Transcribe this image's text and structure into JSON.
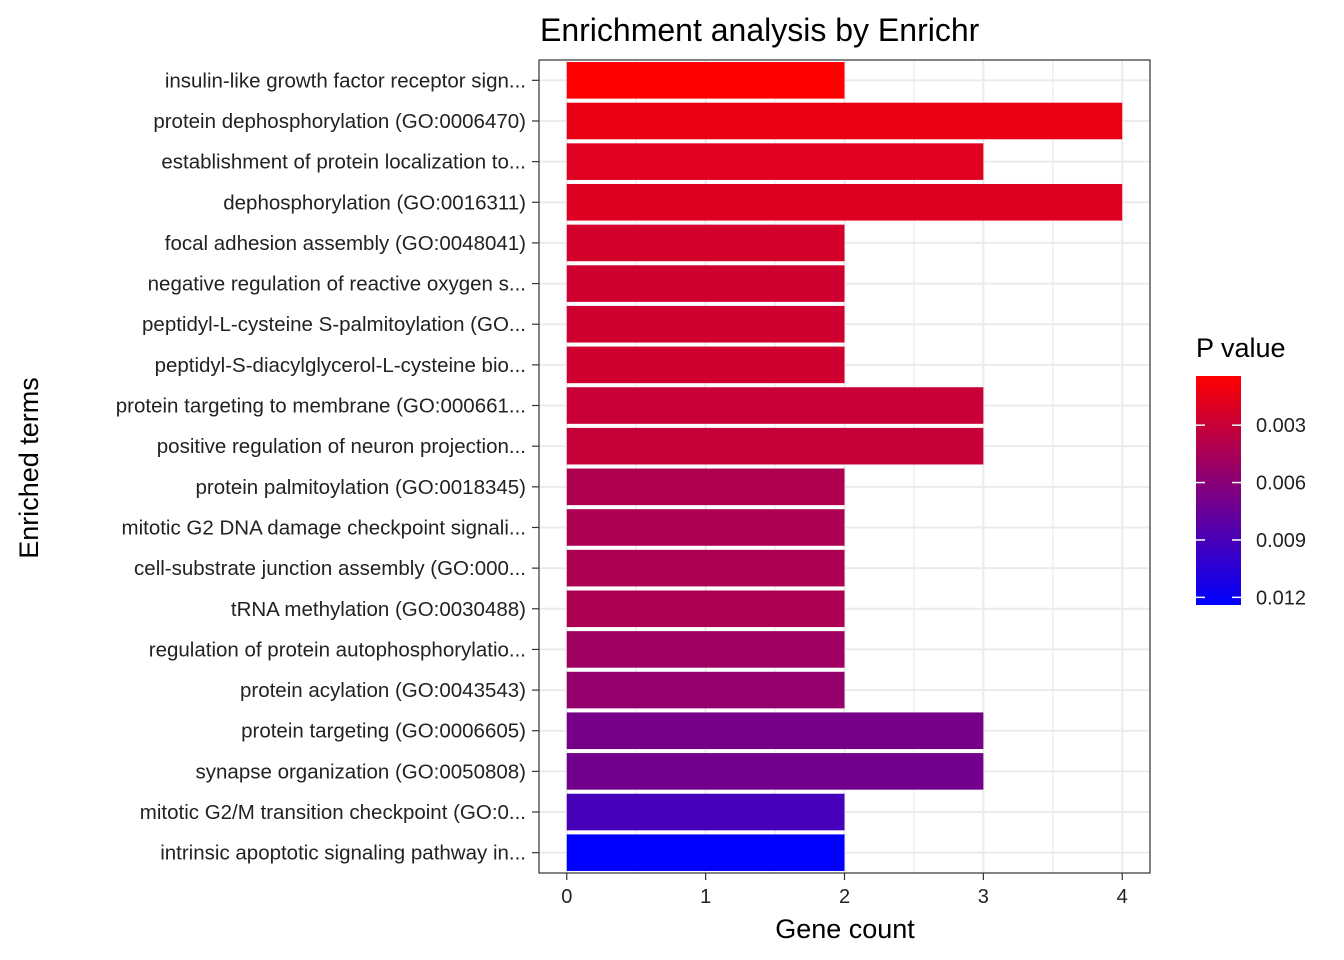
{
  "chart_data": {
    "type": "bar",
    "orientation": "horizontal",
    "title": "Enrichment analysis by Enrichr",
    "xlabel": "Gene count",
    "ylabel": "Enriched terms",
    "xlim": [
      -0.2,
      4.2
    ],
    "xticks": [
      0,
      1,
      2,
      3,
      4
    ],
    "grid": true,
    "color_low": "#FF0000",
    "color_high": "#0000FF",
    "categories": [
      "insulin-like growth factor receptor sign...",
      "protein dephosphorylation (GO:0006470)",
      "establishment of protein localization to...",
      "dephosphorylation (GO:0016311)",
      "focal adhesion assembly (GO:0048041)",
      "negative regulation of reactive oxygen s...",
      "peptidyl-L-cysteine S-palmitoylation (GO...",
      "peptidyl-S-diacylglycerol-L-cysteine bio...",
      "protein targeting to membrane (GO:000661...",
      "positive regulation of neuron projection...",
      "protein palmitoylation (GO:0018345)",
      "mitotic G2 DNA damage checkpoint signali...",
      "cell-substrate junction assembly (GO:000...",
      "tRNA methylation (GO:0030488)",
      "regulation of protein autophosphorylatio...",
      "protein acylation (GO:0043543)",
      "protein targeting (GO:0006605)",
      "synapse organization (GO:0050808)",
      "mitotic G2/M transition checkpoint (GO:0...",
      "intrinsic apoptotic signaling pathway in..."
    ],
    "values": [
      2,
      4,
      3,
      4,
      2,
      2,
      2,
      2,
      3,
      3,
      2,
      2,
      2,
      2,
      2,
      2,
      3,
      3,
      2,
      2
    ],
    "p_values": [
      0.00043,
      0.0014,
      0.0019,
      0.002,
      0.0025,
      0.0027,
      0.0027,
      0.0027,
      0.003,
      0.0031,
      0.0042,
      0.0043,
      0.0043,
      0.0043,
      0.005,
      0.0055,
      0.0068,
      0.007,
      0.0091,
      0.0124
    ],
    "legend": {
      "title": "P value",
      "placement": "right",
      "ticks": [
        0.003,
        0.006,
        0.009,
        0.012
      ],
      "tick_labels": [
        "0.003",
        "0.006",
        "0.009",
        "0.012"
      ],
      "range": [
        0.00043,
        0.0124
      ]
    }
  }
}
